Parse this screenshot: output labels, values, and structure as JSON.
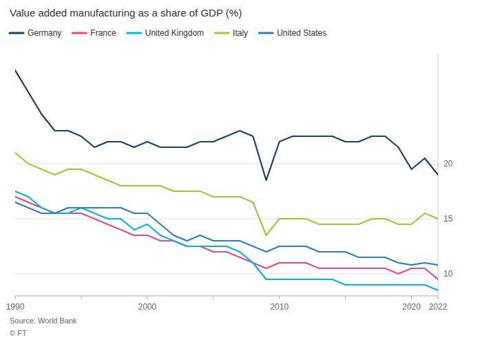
{
  "chart_data": {
    "type": "line",
    "title": "Value added manufacturing as a share of GDP (%)",
    "annotations": [
      "Source: World Bank",
      "© FT"
    ],
    "x": [
      1990,
      1991,
      1992,
      1993,
      1994,
      1995,
      1996,
      1997,
      1998,
      1999,
      2000,
      2001,
      2002,
      2003,
      2004,
      2005,
      2006,
      2007,
      2008,
      2009,
      2010,
      2011,
      2012,
      2013,
      2014,
      2015,
      2016,
      2017,
      2018,
      2019,
      2020,
      2021,
      2022
    ],
    "series": [
      {
        "name": "Germany",
        "color": "#1a3f6f",
        "values": [
          28.5,
          26.5,
          24.5,
          23.0,
          23.0,
          22.5,
          21.5,
          22.0,
          22.0,
          21.5,
          22.0,
          21.5,
          21.5,
          21.5,
          22.0,
          22.0,
          22.5,
          23.0,
          22.5,
          18.5,
          22.0,
          22.5,
          22.5,
          22.5,
          22.5,
          22.0,
          22.0,
          22.5,
          22.5,
          21.5,
          19.5,
          20.5,
          19.0
        ]
      },
      {
        "name": "France",
        "color": "#e8488a",
        "values": [
          17.0,
          16.5,
          16.0,
          15.5,
          15.5,
          15.5,
          15.0,
          14.5,
          14.0,
          13.5,
          13.5,
          13.0,
          13.0,
          12.5,
          12.5,
          12.0,
          12.0,
          11.5,
          11.0,
          10.5,
          11.0,
          11.0,
          11.0,
          10.5,
          10.5,
          10.5,
          10.5,
          10.5,
          10.5,
          10.0,
          10.5,
          10.5,
          9.5
        ]
      },
      {
        "name": "United Kingdom",
        "color": "#00b5d8",
        "values": [
          17.5,
          17.0,
          16.0,
          15.5,
          15.5,
          16.0,
          15.5,
          15.0,
          15.0,
          14.0,
          14.5,
          13.5,
          13.0,
          12.5,
          12.5,
          12.5,
          12.5,
          12.0,
          11.0,
          9.5,
          9.5,
          9.5,
          9.5,
          9.5,
          9.5,
          9.0,
          9.0,
          9.0,
          9.0,
          9.0,
          9.0,
          9.0,
          8.5
        ]
      },
      {
        "name": "Italy",
        "color": "#99cc33",
        "values": [
          21.0,
          20.0,
          19.5,
          19.0,
          19.5,
          19.5,
          19.0,
          18.5,
          18.0,
          18.0,
          18.0,
          18.0,
          17.5,
          17.5,
          17.5,
          17.0,
          17.0,
          17.0,
          16.5,
          13.5,
          15.0,
          15.0,
          15.0,
          14.5,
          14.5,
          14.5,
          14.5,
          15.0,
          15.0,
          14.5,
          14.5,
          15.5,
          15.0
        ]
      },
      {
        "name": "United States",
        "color": "#2e7ebf",
        "values": [
          16.5,
          16.0,
          15.5,
          15.5,
          16.0,
          16.0,
          16.0,
          16.0,
          16.0,
          15.5,
          15.5,
          14.5,
          13.5,
          13.0,
          13.5,
          13.0,
          13.0,
          13.0,
          12.5,
          12.0,
          12.5,
          12.5,
          12.5,
          12.0,
          12.0,
          12.0,
          11.5,
          11.5,
          11.5,
          11.0,
          10.8,
          11.0,
          10.8
        ]
      }
    ],
    "xlim": [
      1990,
      2022
    ],
    "xticks": [
      1990,
      {
        "value": 1995,
        "label": null
      },
      2000,
      {
        "value": 2005,
        "label": null
      },
      2010,
      {
        "value": 2015,
        "label": null
      },
      2020,
      2022
    ],
    "ylim": [
      8.0,
      30.0
    ],
    "yticks": [
      10,
      15,
      20
    ],
    "grid": true,
    "legend": "top"
  }
}
